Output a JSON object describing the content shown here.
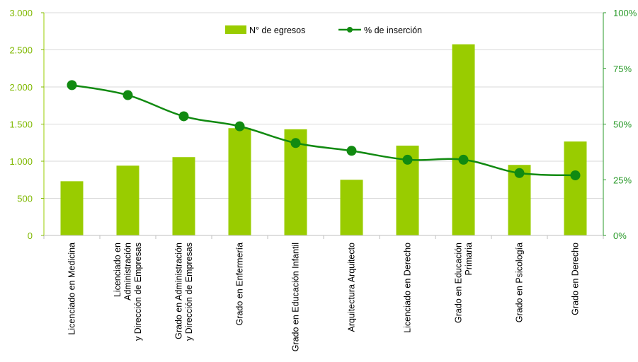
{
  "chart_data": {
    "type": "bar",
    "categories": [
      "Licenciado en Medicina",
      "Licenciado en Administración y Dirección de Empresas",
      "Grado en Administración y Dirección de Empresas",
      "Grado en Enfermería",
      "Grado en Educación Infantil",
      "Arquitectura Arquitecto",
      "Licenciado en Derecho",
      "Grado en Educación Primaria",
      "Grado en Psicología",
      "Grado en Derecho"
    ],
    "category_lines": [
      [
        "Licenciado en Medicina"
      ],
      [
        "Licenciado en",
        "Administración",
        "y Dirección de Empresas"
      ],
      [
        "Grado en Administración",
        "y Dirección de Empresas"
      ],
      [
        "Grado en Enfermería"
      ],
      [
        "Grado en Educación Infantil"
      ],
      [
        "Arquitectura Arquitecto"
      ],
      [
        "Licenciado en Derecho"
      ],
      [
        "Grado en Educación",
        "Primaria"
      ],
      [
        "Grado en Psicología"
      ],
      [
        "Grado en Derecho"
      ]
    ],
    "series": [
      {
        "name": "N° de egresos",
        "type": "bar",
        "axis": "left",
        "color": "#99cc00",
        "values": [
          730,
          940,
          1055,
          1445,
          1430,
          750,
          1210,
          2575,
          950,
          1265
        ]
      },
      {
        "name": "% de inserción",
        "type": "line",
        "axis": "right",
        "color": "#118a11",
        "values": [
          67.5,
          63,
          53.5,
          49,
          41.5,
          38,
          34,
          34,
          28,
          27
        ]
      }
    ],
    "y_left": {
      "min": 0,
      "max": 3000,
      "ticks": [
        0,
        500,
        1000,
        1500,
        2000,
        2500,
        3000
      ],
      "tick_labels": [
        "0",
        "500",
        "1.000",
        "1.500",
        "2.000",
        "2.500",
        "3.000"
      ],
      "color": "#7fb800"
    },
    "y_right": {
      "min": 0,
      "max": 100,
      "ticks": [
        0,
        25,
        50,
        75,
        100
      ],
      "tick_labels": [
        "0%",
        "25%",
        "50%",
        "75%",
        "100%"
      ],
      "color": "#2a9a2a"
    },
    "grid": true,
    "legend": "top-center"
  }
}
